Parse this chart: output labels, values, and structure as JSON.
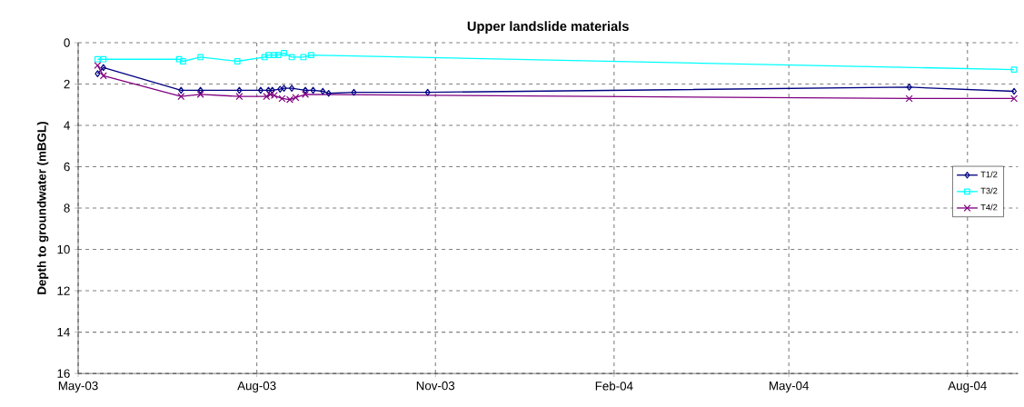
{
  "chart_data": {
    "type": "line",
    "title": "Upper landslide materials",
    "ylabel": "Depth to groundwater (mBGL)",
    "xlim": [
      "2003-05-01",
      "2004-08-27"
    ],
    "xticks": [
      {
        "value": "2003-05-01",
        "label": "May-03"
      },
      {
        "value": "2003-08-01",
        "label": "Aug-03"
      },
      {
        "value": "2003-11-01",
        "label": "Nov-03"
      },
      {
        "value": "2004-02-01",
        "label": "Feb-04"
      },
      {
        "value": "2004-05-01",
        "label": "May-04"
      },
      {
        "value": "2004-08-01",
        "label": "Aug-04"
      }
    ],
    "ylim": [
      16,
      0
    ],
    "yticks": [
      0,
      2,
      4,
      6,
      8,
      10,
      12,
      14,
      16
    ],
    "grid": true,
    "legend": "right",
    "line_style": "solid",
    "series": [
      {
        "name": "T1/2",
        "color": "#000080",
        "marker": "diamond",
        "x": [
          "2003-05-11",
          "2003-05-14",
          "2003-06-23",
          "2003-07-03",
          "2003-07-23",
          "2003-08-03",
          "2003-08-07",
          "2003-08-09",
          "2003-08-13",
          "2003-08-15",
          "2003-08-19",
          "2003-08-26",
          "2003-08-30",
          "2003-09-04",
          "2003-09-07",
          "2003-09-20",
          "2003-10-28",
          "2004-07-02",
          "2004-08-25"
        ],
        "values": [
          1.5,
          1.2,
          2.3,
          2.3,
          2.3,
          2.3,
          2.3,
          2.3,
          2.25,
          2.2,
          2.2,
          2.3,
          2.3,
          2.35,
          2.45,
          2.4,
          2.4,
          2.15,
          2.35
        ]
      },
      {
        "name": "T3/2",
        "color": "#00ffff",
        "marker": "square",
        "x": [
          "2003-05-11",
          "2003-05-14",
          "2003-06-22",
          "2003-06-24",
          "2003-07-03",
          "2003-07-22",
          "2003-08-05",
          "2003-08-07",
          "2003-08-10",
          "2003-08-12",
          "2003-08-15",
          "2003-08-19",
          "2003-08-25",
          "2003-08-29",
          "2004-08-25"
        ],
        "values": [
          0.8,
          0.8,
          0.8,
          0.9,
          0.7,
          0.9,
          0.7,
          0.6,
          0.6,
          0.6,
          0.5,
          0.7,
          0.7,
          0.6,
          1.3
        ]
      },
      {
        "name": "T4/2",
        "color": "#800080",
        "marker": "cross",
        "x": [
          "2003-05-11",
          "2003-05-14",
          "2003-06-23",
          "2003-07-03",
          "2003-07-23",
          "2003-08-06",
          "2003-08-08",
          "2003-08-10",
          "2003-08-14",
          "2003-08-18",
          "2003-08-21",
          "2003-08-26",
          "2004-07-02",
          "2004-08-25"
        ],
        "values": [
          1.1,
          1.6,
          2.6,
          2.5,
          2.6,
          2.6,
          2.5,
          2.55,
          2.7,
          2.75,
          2.65,
          2.5,
          2.7,
          2.7
        ]
      }
    ]
  }
}
